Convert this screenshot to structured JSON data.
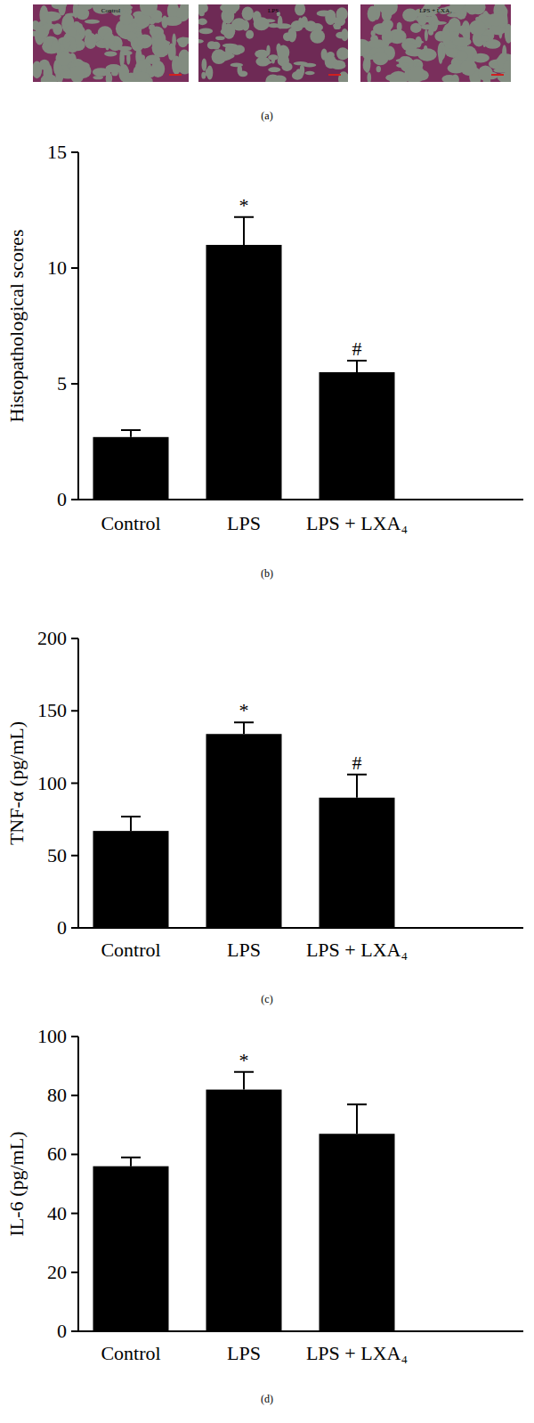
{
  "images": {
    "panel_label": "(a)",
    "titles": [
      "Control",
      "LPS",
      "LPS + LXA₄"
    ]
  },
  "chart_data": [
    {
      "type": "bar",
      "panel_label": "(b)",
      "y_label": "Histopathological scores",
      "categories": [
        "Control",
        "LPS",
        "LPS + LXA₄"
      ],
      "values": [
        2.7,
        11.0,
        5.5
      ],
      "errors": [
        0.3,
        1.2,
        0.5
      ],
      "annotations": [
        null,
        "*",
        "#"
      ],
      "color": "#000000",
      "ylim": [
        0,
        15
      ],
      "yticks": [
        0,
        5,
        10,
        15
      ]
    },
    {
      "type": "bar",
      "panel_label": "(c)",
      "y_label": "TNF-α (pg/mL)",
      "categories": [
        "Control",
        "LPS",
        "LPS + LXA₄"
      ],
      "values": [
        67,
        134,
        90
      ],
      "errors": [
        10,
        8,
        16
      ],
      "annotations": [
        null,
        "*",
        "#"
      ],
      "color": "#000000",
      "ylim": [
        0,
        200
      ],
      "yticks": [
        0,
        50,
        100,
        150,
        200
      ]
    },
    {
      "type": "bar",
      "panel_label": "(d)",
      "y_label": "IL-6 (pg/mL)",
      "categories": [
        "Control",
        "LPS",
        "LPS + LXA₄"
      ],
      "values": [
        56,
        82,
        67
      ],
      "errors": [
        3,
        6,
        10
      ],
      "annotations": [
        null,
        "*",
        null
      ],
      "color": "#000000",
      "ylim": [
        0,
        100
      ],
      "yticks": [
        0,
        20,
        40,
        60,
        80,
        100
      ]
    }
  ]
}
